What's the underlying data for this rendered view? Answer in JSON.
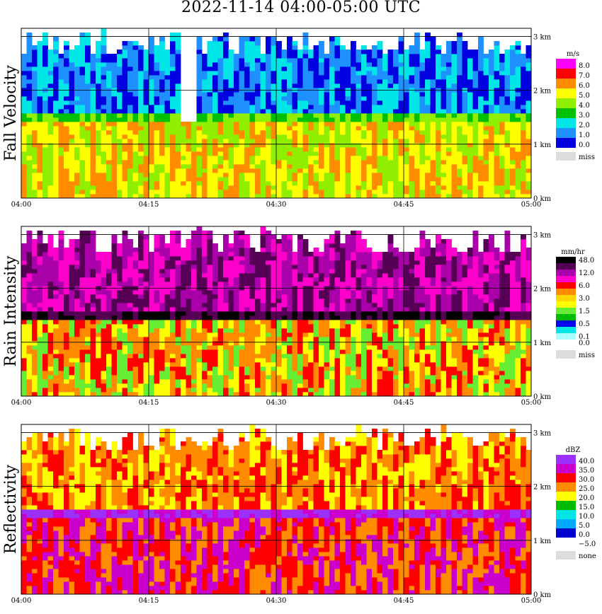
{
  "title": "2022-11-14   04:00-05:00 UTC",
  "chart_data": [
    {
      "type": "heatmap",
      "panel": "fall_velocity",
      "ylabel": "Fall Velocity",
      "x_ticks": [
        "04:00",
        "04:15",
        "04:30",
        "04:45",
        "05:00"
      ],
      "y_ticks": [
        "0 km",
        "1 km",
        "2 km",
        "3 km"
      ],
      "ylim_km": [
        0,
        3.15
      ],
      "xlim": [
        "04:00",
        "05:00"
      ],
      "grid": true,
      "legend": {
        "title": "m/s",
        "items": [
          {
            "label": "8.0",
            "color": "#ff00ff"
          },
          {
            "label": "7.0",
            "color": "#ff0000"
          },
          {
            "label": "6.0",
            "color": "#ff8c00"
          },
          {
            "label": "5.0",
            "color": "#ffff00"
          },
          {
            "label": "4.0",
            "color": "#90ee00"
          },
          {
            "label": "3.0",
            "color": "#00c000"
          },
          {
            "label": "2.0",
            "color": "#00e5e5"
          },
          {
            "label": "1.0",
            "color": "#1e90ff"
          },
          {
            "label": "0.0",
            "color": "#0000e0"
          }
        ],
        "miss_label": "miss",
        "miss_color": "#dcdcdc"
      },
      "data_summary": {
        "melting_layer_km": 1.45,
        "upper_layer_value": 1.5,
        "lower_layer_value": 5.5
      }
    },
    {
      "type": "heatmap",
      "panel": "rain_intensity",
      "ylabel": "Rain Intensity",
      "x_ticks": [
        "04:00",
        "04:15",
        "04:30",
        "04:45",
        "05:00"
      ],
      "y_ticks": [
        "0 km",
        "1 km",
        "2 km",
        "3 km"
      ],
      "ylim_km": [
        0,
        3.15
      ],
      "xlim": [
        "04:00",
        "05:00"
      ],
      "grid": true,
      "legend": {
        "title": "mm/hr",
        "items": [
          {
            "label": "48.0",
            "color": "#000000"
          },
          {
            "label": "",
            "color": "#550055"
          },
          {
            "label": "12.0",
            "color": "#aa00aa"
          },
          {
            "label": "",
            "color": "#ff00cc"
          },
          {
            "label": "6.0",
            "color": "#ff0000"
          },
          {
            "label": "",
            "color": "#ff8c00"
          },
          {
            "label": "3.0",
            "color": "#ffd700"
          },
          {
            "label": "",
            "color": "#ffff00"
          },
          {
            "label": "1.5",
            "color": "#66ee33"
          },
          {
            "label": "",
            "color": "#00bb00"
          },
          {
            "label": "0.5",
            "color": "#0000ee"
          },
          {
            "label": "",
            "color": "#00e5e5"
          },
          {
            "label": "0.1",
            "color": "#aaffff"
          },
          {
            "label": "0.0",
            "color": "#ffffff"
          }
        ],
        "miss_label": "miss",
        "miss_color": "#dcdcdc"
      },
      "data_summary": {
        "melting_layer_km": 1.45,
        "upper_layer_value": 12.0,
        "lower_layer_value": 3.0
      }
    },
    {
      "type": "heatmap",
      "panel": "reflectivity",
      "ylabel": "Reflectivity",
      "x_ticks": [
        "04:00",
        "04:15",
        "04:30",
        "04:45",
        "05:00"
      ],
      "y_ticks": [
        "0 km",
        "1 km",
        "2 km",
        "3 km"
      ],
      "ylim_km": [
        0,
        3.15
      ],
      "xlim": [
        "04:00",
        "05:00"
      ],
      "grid": true,
      "legend": {
        "title": "dBZ",
        "items": [
          {
            "label": "40.0",
            "color": "#9b30ff"
          },
          {
            "label": "35.0",
            "color": "#cc00cc"
          },
          {
            "label": "30.0",
            "color": "#ff0000"
          },
          {
            "label": "25.0",
            "color": "#ff8c00"
          },
          {
            "label": "20.0",
            "color": "#ffff00"
          },
          {
            "label": "15.0",
            "color": "#00bb00"
          },
          {
            "label": "10.0",
            "color": "#00e5e5"
          },
          {
            "label": "5.0",
            "color": "#00aaff"
          },
          {
            "label": "0.0",
            "color": "#0000cc"
          },
          {
            "label": "−5.0",
            "color": "#ffffff"
          }
        ],
        "miss_label": "none",
        "miss_color": "#dcdcdc"
      },
      "data_summary": {
        "melting_layer_km": 1.45,
        "upper_layer_value": 27.5,
        "lower_layer_value": 30.0
      }
    }
  ]
}
